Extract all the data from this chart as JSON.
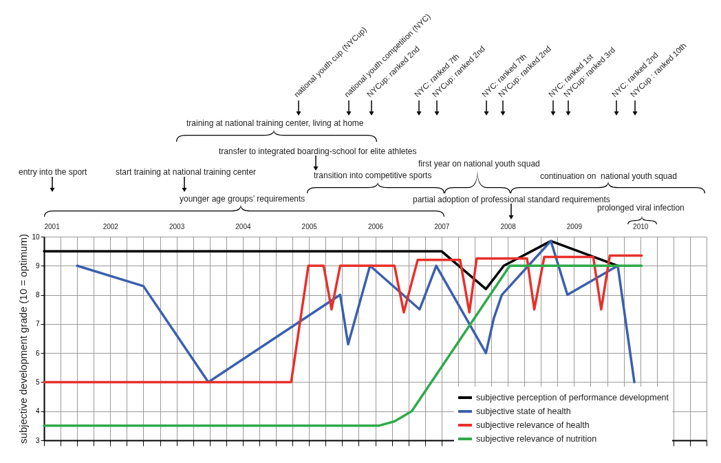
{
  "chart_data": {
    "type": "line",
    "ylabel": "subjective development grade (10 = optimum)",
    "xlim": [
      2001,
      2011
    ],
    "ylim": [
      3,
      10
    ],
    "xticks": [
      2001,
      {
        "value": 2001.25,
        "label": null
      },
      {
        "value": 2001.5,
        "label": null
      },
      {
        "value": 2001.75,
        "label": null
      },
      2002,
      {
        "value": 2002.25,
        "label": null
      },
      {
        "value": 2002.5,
        "label": null
      },
      {
        "value": 2002.75,
        "label": null
      },
      2003,
      {
        "value": 2003.25,
        "label": null
      },
      {
        "value": 2003.5,
        "label": null
      },
      {
        "value": 2003.75,
        "label": null
      },
      2004,
      {
        "value": 2004.25,
        "label": null
      },
      {
        "value": 2004.5,
        "label": null
      },
      {
        "value": 2004.75,
        "label": null
      },
      2005,
      {
        "value": 2005.25,
        "label": null
      },
      {
        "value": 2005.5,
        "label": null
      },
      {
        "value": 2005.75,
        "label": null
      },
      2006,
      {
        "value": 2006.25,
        "label": null
      },
      {
        "value": 2006.5,
        "label": null
      },
      {
        "value": 2006.75,
        "label": null
      },
      2007,
      {
        "value": 2007.25,
        "label": null
      },
      {
        "value": 2007.5,
        "label": null
      },
      {
        "value": 2007.75,
        "label": null
      },
      2008,
      {
        "value": 2008.25,
        "label": null
      },
      {
        "value": 2008.5,
        "label": null
      },
      {
        "value": 2008.75,
        "label": null
      },
      2009,
      {
        "value": 2009.25,
        "label": null
      },
      {
        "value": 2009.5,
        "label": null
      },
      {
        "value": 2009.75,
        "label": null
      },
      2010,
      {
        "value": 2010.25,
        "label": null
      },
      {
        "value": 2010.5,
        "label": null
      },
      {
        "value": 2010.75,
        "label": null
      },
      {
        "value": 2011,
        "label": null
      }
    ],
    "yticks": [
      3,
      4,
      5,
      6,
      7,
      8,
      9,
      10
    ],
    "grid": true,
    "legend": "bottom right",
    "line_style": "solid",
    "marker": "none",
    "series": [
      {
        "name": "subjective perception of performance development",
        "color": "#000000",
        "x": [
          2001,
          2007,
          2007.67,
          2007.94,
          2008.65,
          2009.66
        ],
        "values": [
          9.5,
          9.5,
          8.2,
          9.0,
          9.85,
          9.0
        ]
      },
      {
        "name": "subjective state of health",
        "color": "#3a5fad",
        "x": [
          2001.5,
          2002.5,
          2003.48,
          2005.47,
          2005.59,
          2005.92,
          2006.67,
          2006.92,
          2007.67,
          2007.79,
          2007.91,
          2008.65,
          2008.9,
          2009.66,
          2009.91
        ],
        "values": [
          9.0,
          8.3,
          5.0,
          8.0,
          6.3,
          9.0,
          7.5,
          9.0,
          6.0,
          7.2,
          8.0,
          9.85,
          8.0,
          9.0,
          5.0
        ]
      },
      {
        "name": "subjective relevance of health",
        "color": "#e8302a",
        "x": [
          2001,
          2004.73,
          2004.99,
          2005.22,
          2005.34,
          2005.47,
          2006.29,
          2006.43,
          2006.64,
          2007.28,
          2007.42,
          2007.53,
          2008.29,
          2008.4,
          2008.55,
          2009.29,
          2009.41,
          2009.54,
          2010.02
        ],
        "values": [
          5,
          5,
          9,
          9,
          7.5,
          9,
          9,
          7.4,
          9.2,
          9.2,
          7.4,
          9.25,
          9.25,
          7.5,
          9.3,
          9.3,
          7.5,
          9.35,
          9.35
        ]
      },
      {
        "name": "subjective relevance of nutrition",
        "color": "#2eaa4a",
        "x": [
          2001,
          2006.05,
          2006.29,
          2006.55,
          2008.03,
          2010.02
        ],
        "values": [
          3.5,
          3.5,
          3.65,
          4.0,
          9.0,
          9.0
        ]
      }
    ],
    "annotations": [
      "national youth cup (NYCup)",
      "national youth competition (NYC)",
      "NYCup: ranked 2nd",
      "NYC: ranked 7th",
      "NYCup: ranked 2nd",
      "NYC: ranked 7th",
      "NYCup: ranked 2nd",
      "NYC: ranked 1st",
      "NYCup: ranked 3rd",
      "NYC: ranked 2nd",
      "NYCup : ranked 10th",
      "training at national training center, living at home",
      "transfer to integrated boarding-school for elite athletes",
      "entry into the sport",
      "start training at national training center",
      "first year on national youth squad",
      "transition into competitive sports",
      "continuation on  national youth squad",
      "partial adoption of professional standard requirements",
      "younger age groups’ requirements",
      "prolonged viral infection"
    ]
  }
}
